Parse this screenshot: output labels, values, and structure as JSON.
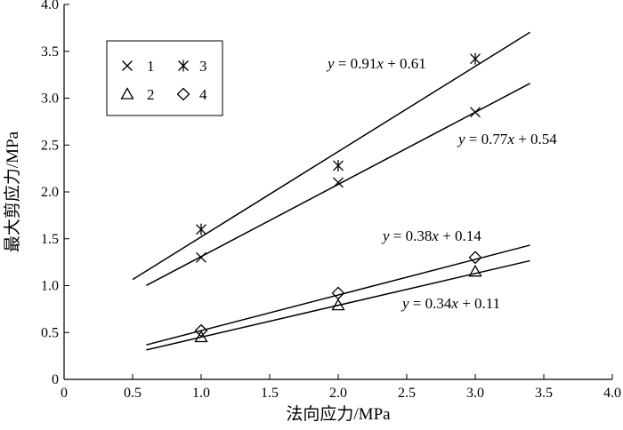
{
  "chart_data": {
    "type": "scatter",
    "xlabel": "法向应力/MPa",
    "ylabel": "最大剪应力/MPa",
    "xlim": [
      0,
      4.0
    ],
    "ylim": [
      0,
      4.0
    ],
    "xticks": [
      "0",
      "0.5",
      "1.0",
      "1.5",
      "2.0",
      "2.5",
      "3.0",
      "3.5",
      "4.0"
    ],
    "yticks": [
      "0",
      "0.5",
      "1.0",
      "1.5",
      "2.0",
      "2.5",
      "3.0",
      "3.5",
      "4.0"
    ],
    "grid": false,
    "legend_position": "top-left",
    "series": [
      {
        "name": "1",
        "marker": "x",
        "x": [
          1.0,
          2.0,
          3.0
        ],
        "y": [
          1.3,
          2.1,
          2.85
        ],
        "fit": {
          "slope": 0.77,
          "intercept": 0.54,
          "x_range": [
            0.6,
            3.4
          ],
          "equation": [
            "y",
            " = 0.77",
            "x",
            " + 0.54"
          ]
        }
      },
      {
        "name": "3",
        "marker": "asterisk",
        "x": [
          1.0,
          2.0,
          3.0
        ],
        "y": [
          1.6,
          2.28,
          3.42
        ],
        "fit": {
          "slope": 0.91,
          "intercept": 0.61,
          "x_range": [
            0.5,
            3.4
          ],
          "equation": [
            "y",
            " = 0.91",
            "x",
            " + 0.61"
          ]
        }
      },
      {
        "name": "2",
        "marker": "triangle",
        "x": [
          1.0,
          2.0,
          3.0
        ],
        "y": [
          0.45,
          0.79,
          1.15
        ],
        "fit": {
          "slope": 0.34,
          "intercept": 0.11,
          "x_range": [
            0.6,
            3.4
          ],
          "equation": [
            "y",
            " = 0.34",
            "x",
            " + 0.11"
          ]
        }
      },
      {
        "name": "4",
        "marker": "diamond",
        "x": [
          1.0,
          2.0,
          3.0
        ],
        "y": [
          0.52,
          0.92,
          1.3
        ],
        "fit": {
          "slope": 0.38,
          "intercept": 0.14,
          "x_range": [
            0.6,
            3.4
          ],
          "equation": [
            "y",
            " = 0.38",
            "x",
            " + 0.14"
          ]
        }
      }
    ]
  }
}
